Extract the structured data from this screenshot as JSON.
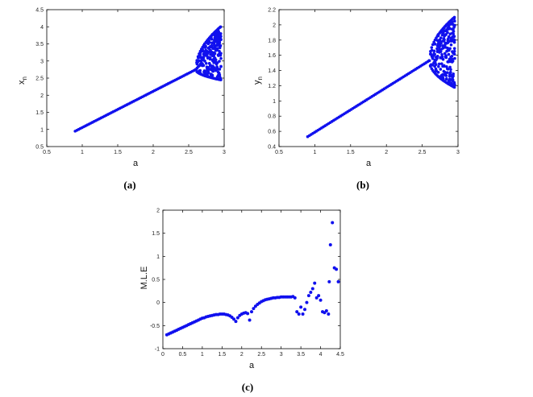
{
  "chart_data": [
    {
      "type": "scatter",
      "panel_label": "(a)",
      "xlabel": "a",
      "ylabel": "x",
      "ylabel_sub": "n",
      "xlim": [
        0.5,
        3
      ],
      "ylim": [
        0.5,
        4.5
      ],
      "xticks": [
        "0.5",
        "1",
        "1.5",
        "2",
        "2.5",
        "3"
      ],
      "yticks": [
        "0.5",
        "1",
        "1.5",
        "2",
        "2.5",
        "3",
        "3.5",
        "4",
        "4.5"
      ],
      "line_segment": {
        "x": [
          0.9,
          2.6
        ],
        "y": [
          0.95,
          2.75
        ]
      },
      "fan": {
        "x_start": 2.6,
        "x_end": 2.95,
        "y_low_end": 2.45,
        "y_high_end": 4.0
      }
    },
    {
      "type": "scatter",
      "panel_label": "(b)",
      "xlabel": "a",
      "ylabel": "y",
      "ylabel_sub": "n",
      "xlim": [
        0.5,
        3
      ],
      "ylim": [
        0.4,
        2.2
      ],
      "xticks": [
        "0.5",
        "1",
        "1.5",
        "2",
        "2.5",
        "3"
      ],
      "yticks": [
        "0.4",
        "0.6",
        "0.8",
        "1",
        "1.2",
        "1.4",
        "1.6",
        "1.8",
        "2",
        "2.2"
      ],
      "line_segment": {
        "x": [
          0.9,
          2.6
        ],
        "y": [
          0.53,
          1.53
        ]
      },
      "fan": {
        "x_start": 2.6,
        "x_end": 2.95,
        "y_low_end": 1.18,
        "y_high_end": 2.1
      }
    },
    {
      "type": "scatter",
      "panel_label": "(c)",
      "xlabel": "a",
      "ylabel": "M.L.E",
      "xlim": [
        0,
        4.5
      ],
      "ylim": [
        -1,
        2
      ],
      "xticks": [
        "0",
        "0.5",
        "1",
        "1.5",
        "2",
        "2.5",
        "3",
        "3.5",
        "4",
        "4.5"
      ],
      "yticks": [
        "-1",
        "-0.5",
        "0",
        "0.5",
        "1",
        "1.5",
        "2"
      ],
      "points": [
        [
          0.1,
          -0.7
        ],
        [
          0.15,
          -0.68
        ],
        [
          0.2,
          -0.66
        ],
        [
          0.25,
          -0.64
        ],
        [
          0.3,
          -0.62
        ],
        [
          0.35,
          -0.6
        ],
        [
          0.4,
          -0.58
        ],
        [
          0.45,
          -0.56
        ],
        [
          0.5,
          -0.54
        ],
        [
          0.55,
          -0.52
        ],
        [
          0.6,
          -0.5
        ],
        [
          0.65,
          -0.48
        ],
        [
          0.7,
          -0.46
        ],
        [
          0.75,
          -0.44
        ],
        [
          0.8,
          -0.42
        ],
        [
          0.85,
          -0.4
        ],
        [
          0.9,
          -0.38
        ],
        [
          0.95,
          -0.36
        ],
        [
          1.0,
          -0.34
        ],
        [
          1.05,
          -0.33
        ],
        [
          1.1,
          -0.31
        ],
        [
          1.15,
          -0.3
        ],
        [
          1.2,
          -0.29
        ],
        [
          1.25,
          -0.28
        ],
        [
          1.3,
          -0.27
        ],
        [
          1.35,
          -0.26
        ],
        [
          1.4,
          -0.26
        ],
        [
          1.45,
          -0.25
        ],
        [
          1.5,
          -0.25
        ],
        [
          1.55,
          -0.25
        ],
        [
          1.6,
          -0.26
        ],
        [
          1.65,
          -0.27
        ],
        [
          1.7,
          -0.29
        ],
        [
          1.75,
          -0.32
        ],
        [
          1.8,
          -0.36
        ],
        [
          1.85,
          -0.41
        ],
        [
          1.9,
          -0.33
        ],
        [
          1.95,
          -0.28
        ],
        [
          2.0,
          -0.25
        ],
        [
          2.05,
          -0.23
        ],
        [
          2.1,
          -0.22
        ],
        [
          2.15,
          -0.24
        ],
        [
          2.2,
          -0.38
        ],
        [
          2.25,
          -0.2
        ],
        [
          2.3,
          -0.13
        ],
        [
          2.35,
          -0.08
        ],
        [
          2.4,
          -0.04
        ],
        [
          2.45,
          -0.01
        ],
        [
          2.5,
          0.02
        ],
        [
          2.55,
          0.04
        ],
        [
          2.6,
          0.06
        ],
        [
          2.65,
          0.07
        ],
        [
          2.7,
          0.08
        ],
        [
          2.75,
          0.09
        ],
        [
          2.8,
          0.1
        ],
        [
          2.85,
          0.1
        ],
        [
          2.9,
          0.11
        ],
        [
          2.95,
          0.11
        ],
        [
          3.0,
          0.12
        ],
        [
          3.05,
          0.12
        ],
        [
          3.1,
          0.12
        ],
        [
          3.15,
          0.12
        ],
        [
          3.2,
          0.12
        ],
        [
          3.25,
          0.12
        ],
        [
          3.3,
          0.13
        ],
        [
          3.35,
          0.1
        ],
        [
          3.4,
          -0.2
        ],
        [
          3.45,
          -0.25
        ],
        [
          3.5,
          -0.1
        ],
        [
          3.55,
          -0.25
        ],
        [
          3.6,
          -0.15
        ],
        [
          3.65,
          0.0
        ],
        [
          3.7,
          0.15
        ],
        [
          3.75,
          0.22
        ],
        [
          3.8,
          0.3
        ],
        [
          3.85,
          0.42
        ],
        [
          3.9,
          0.1
        ],
        [
          3.95,
          0.15
        ],
        [
          4.0,
          0.05
        ],
        [
          4.05,
          -0.2
        ],
        [
          4.1,
          -0.22
        ],
        [
          4.15,
          -0.18
        ],
        [
          4.2,
          -0.25
        ],
        [
          4.22,
          0.45
        ],
        [
          4.25,
          1.25
        ],
        [
          4.3,
          1.73
        ],
        [
          4.35,
          0.75
        ],
        [
          4.4,
          0.72
        ],
        [
          4.45,
          0.45
        ]
      ]
    }
  ]
}
